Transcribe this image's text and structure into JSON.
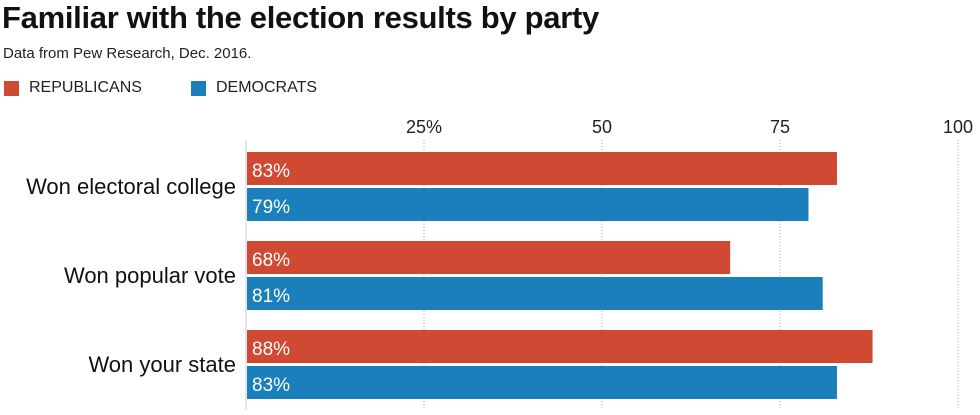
{
  "chart_data": {
    "type": "bar",
    "orientation": "horizontal",
    "title": "Familiar with the election results by party",
    "subtitle": "Data from Pew Research, Dec. 2016.",
    "xlabel": "",
    "ylabel": "",
    "xlim": [
      0,
      100
    ],
    "x_ticks": [
      25,
      50,
      75,
      100
    ],
    "x_tick_labels": [
      "25%",
      "50",
      "75",
      "100"
    ],
    "grid": true,
    "legend_position": "top-left",
    "categories": [
      "Won electoral college",
      "Won popular vote",
      "Won your state"
    ],
    "series": [
      {
        "name": "REPUBLICANS",
        "color": "#d04a33",
        "values": [
          83,
          68,
          88
        ],
        "labels": [
          "83%",
          "68%",
          "88%"
        ]
      },
      {
        "name": "DEMOCRATS",
        "color": "#1a7fbb",
        "values": [
          79,
          81,
          83
        ],
        "labels": [
          "79%",
          "81%",
          "83%"
        ]
      }
    ]
  }
}
